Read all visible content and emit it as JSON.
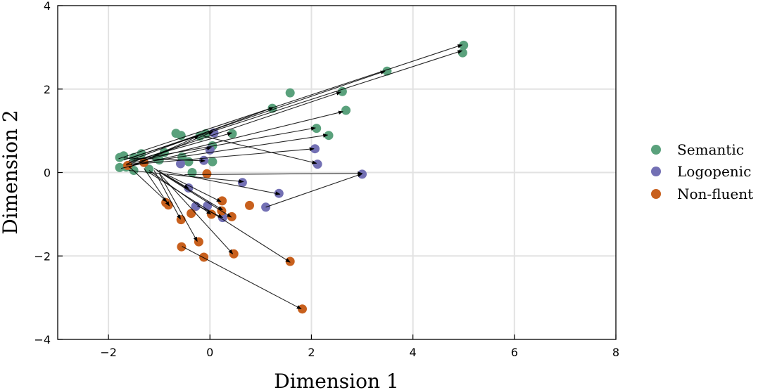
{
  "chart_data": {
    "type": "scatter",
    "title": "",
    "xlabel": "Dimension 1",
    "ylabel": "Dimension 2",
    "xlim": [
      -3,
      8
    ],
    "ylim": [
      -4,
      4
    ],
    "grid": true,
    "legend_position": "right",
    "x_ticks": [
      {
        "v": -2,
        "label": "−2"
      },
      {
        "v": 0,
        "label": "0"
      },
      {
        "v": 2,
        "label": "2"
      },
      {
        "v": 4,
        "label": "4"
      },
      {
        "v": 6,
        "label": "6"
      },
      {
        "v": 8,
        "label": "8"
      }
    ],
    "y_ticks": [
      {
        "v": -4,
        "label": "−4"
      },
      {
        "v": -2,
        "label": "−2"
      },
      {
        "v": 0,
        "label": "0"
      },
      {
        "v": 2,
        "label": "2"
      },
      {
        "v": 4,
        "label": "4"
      }
    ],
    "colors": {
      "semantic": "#5aa17c",
      "logopenic": "#7370b4",
      "nonfluent": "#c8601d",
      "grid": "#e2e2e2",
      "arrow": "#000000"
    },
    "series": [
      {
        "name": "Semantic",
        "key": "semantic",
        "points": [
          [
            5.0,
            3.05
          ],
          [
            4.98,
            2.87
          ],
          [
            3.49,
            2.43
          ],
          [
            1.58,
            1.91
          ],
          [
            2.61,
            1.94
          ],
          [
            2.68,
            1.49
          ],
          [
            1.23,
            1.54
          ],
          [
            2.1,
            1.06
          ],
          [
            2.34,
            0.89
          ],
          [
            0.44,
            0.93
          ],
          [
            -0.67,
            0.94
          ],
          [
            -0.57,
            0.89
          ],
          [
            -0.2,
            0.87
          ],
          [
            -0.08,
            0.93
          ],
          [
            -1.78,
            0.36
          ],
          [
            -1.7,
            0.4
          ],
          [
            -1.5,
            0.36
          ],
          [
            -1.35,
            0.45
          ],
          [
            -0.9,
            0.48
          ],
          [
            -1.05,
            0.34
          ],
          [
            -0.55,
            0.37
          ],
          [
            -0.42,
            0.26
          ],
          [
            0.05,
            0.26
          ],
          [
            -1.65,
            0.13
          ],
          [
            -1.78,
            0.12
          ],
          [
            -1.5,
            0.05
          ],
          [
            -1.2,
            0.08
          ],
          [
            -0.35,
            0.0
          ],
          [
            0.05,
            0.64
          ],
          [
            -1.0,
            0.3
          ]
        ]
      },
      {
        "name": "Logopenic",
        "key": "logopenic",
        "points": [
          [
            0.08,
            0.95
          ],
          [
            0.0,
            0.54
          ],
          [
            2.07,
            0.57
          ],
          [
            2.12,
            0.2
          ],
          [
            3.0,
            -0.04
          ],
          [
            0.64,
            -0.24
          ],
          [
            1.36,
            -0.5
          ],
          [
            1.1,
            -0.83
          ],
          [
            -0.42,
            -0.37
          ],
          [
            -0.28,
            -0.81
          ],
          [
            -0.05,
            -0.8
          ],
          [
            0.25,
            -1.08
          ],
          [
            -0.58,
            0.21
          ],
          [
            -0.12,
            0.29
          ]
        ]
      },
      {
        "name": "Non-fluent",
        "key": "nonfluent",
        "points": [
          [
            -0.06,
            -0.03
          ],
          [
            0.24,
            -0.68
          ],
          [
            0.78,
            -0.79
          ],
          [
            0.23,
            -0.92
          ],
          [
            0.43,
            -1.06
          ],
          [
            0.03,
            -1.0
          ],
          [
            -0.37,
            -0.98
          ],
          [
            -0.87,
            -0.72
          ],
          [
            -0.82,
            -0.78
          ],
          [
            -0.57,
            -1.13
          ],
          [
            -0.22,
            -1.66
          ],
          [
            -0.56,
            -1.78
          ],
          [
            -0.12,
            -2.03
          ],
          [
            0.47,
            -1.95
          ],
          [
            1.58,
            -2.13
          ],
          [
            1.82,
            -3.27
          ],
          [
            -1.3,
            0.24
          ],
          [
            -1.62,
            0.17
          ]
        ]
      }
    ],
    "arrows": [
      [
        -1.8,
        0.33,
        4.97,
        3.06
      ],
      [
        -1.7,
        0.3,
        4.97,
        2.92
      ],
      [
        -1.6,
        0.33,
        3.45,
        2.43
      ],
      [
        -1.65,
        0.2,
        2.58,
        1.93
      ],
      [
        -1.55,
        0.22,
        2.62,
        1.46
      ],
      [
        -1.6,
        0.28,
        1.25,
        1.56
      ],
      [
        -1.5,
        0.3,
        2.08,
        1.07
      ],
      [
        -1.55,
        0.2,
        2.32,
        0.9
      ],
      [
        -1.6,
        0.25,
        0.43,
        0.95
      ],
      [
        -1.65,
        0.18,
        2.05,
        0.57
      ],
      [
        -0.15,
        0.88,
        2.1,
        0.22
      ],
      [
        -1.55,
        0.15,
        0.06,
        0.98
      ],
      [
        -1.6,
        0.12,
        -0.22,
        0.88
      ],
      [
        -1.7,
        0.35,
        -0.1,
        0.28
      ],
      [
        -1.75,
        0.1,
        0.03,
        0.6
      ],
      [
        -1.6,
        0.05,
        0.66,
        -0.22
      ],
      [
        -0.5,
        -0.05,
        3.0,
        -0.02
      ],
      [
        -1.0,
        0.05,
        1.38,
        -0.52
      ],
      [
        1.1,
        -0.83,
        3.0,
        -0.03
      ],
      [
        -1.6,
        0.15,
        -0.85,
        -0.7
      ],
      [
        -1.3,
        0.1,
        -0.8,
        -0.8
      ],
      [
        -1.1,
        0.1,
        -0.42,
        -0.38
      ],
      [
        -1.1,
        0.05,
        -0.58,
        -1.12
      ],
      [
        -1.0,
        -0.02,
        -0.25,
        -1.65
      ],
      [
        -1.0,
        -0.02,
        0.45,
        -1.95
      ],
      [
        -1.2,
        0.0,
        1.58,
        -2.15
      ],
      [
        -0.9,
        -0.05,
        0.25,
        -0.9
      ],
      [
        -0.85,
        -0.05,
        0.22,
        -0.7
      ],
      [
        -0.55,
        -1.77,
        1.8,
        -3.27
      ],
      [
        -1.2,
        0.05,
        0.02,
        -1.0
      ],
      [
        -1.05,
        0.05,
        0.42,
        -1.07
      ],
      [
        -0.25,
        -0.8,
        0.25,
        -1.08
      ]
    ]
  }
}
